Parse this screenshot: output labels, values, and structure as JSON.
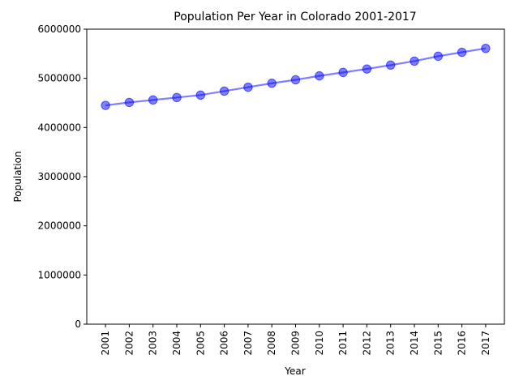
{
  "chart_data": {
    "type": "line",
    "title": "Population Per Year in Colorado 2001-2017",
    "xlabel": "Year",
    "ylabel": "Population",
    "categories": [
      "2001",
      "2002",
      "2003",
      "2004",
      "2005",
      "2006",
      "2007",
      "2008",
      "2009",
      "2010",
      "2011",
      "2012",
      "2013",
      "2014",
      "2015",
      "2016",
      "2017"
    ],
    "series": [
      {
        "values": [
          4450000,
          4510000,
          4560000,
          4610000,
          4660000,
          4740000,
          4820000,
          4900000,
          4970000,
          5050000,
          5120000,
          5190000,
          5270000,
          5350000,
          5450000,
          5530000,
          5610000
        ]
      }
    ],
    "ylim": [
      0,
      6000000
    ],
    "yticks": [
      "0",
      "1000000",
      "2000000",
      "3000000",
      "4000000",
      "5000000",
      "6000000"
    ],
    "grid": false,
    "colors": {
      "line": "#0000ff",
      "marker": "#0000ff"
    }
  }
}
